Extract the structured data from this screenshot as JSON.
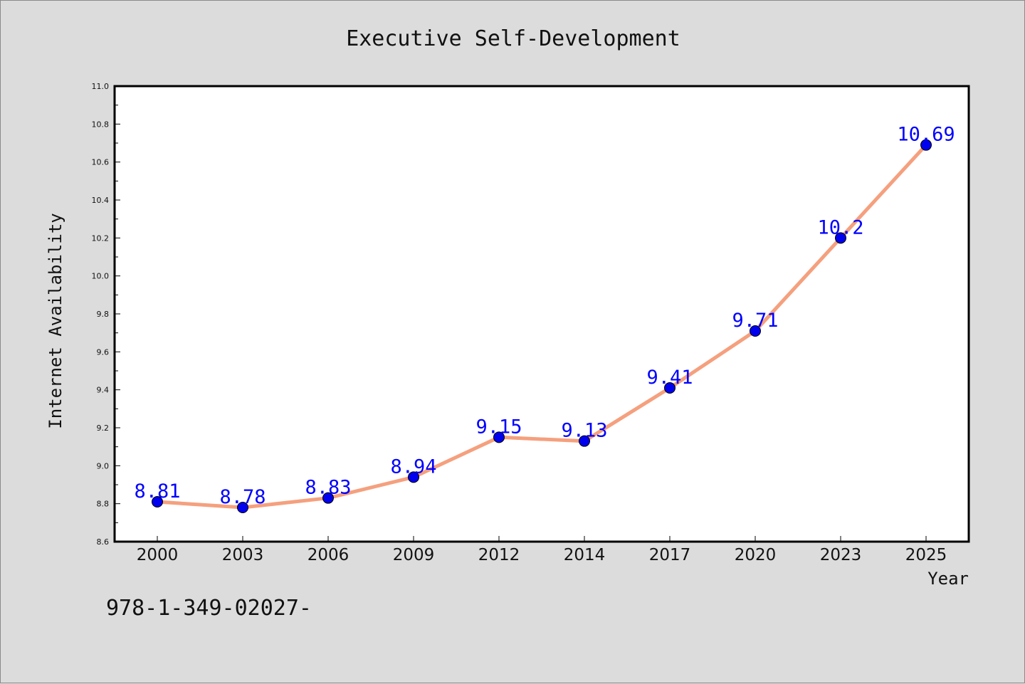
{
  "chart_data": {
    "type": "line",
    "title": "Executive Self-Development",
    "xlabel": "Year",
    "ylabel": "Internet Availability",
    "categories": [
      "2000",
      "2003",
      "2006",
      "2009",
      "2012",
      "2014",
      "2017",
      "2020",
      "2023",
      "2025"
    ],
    "series": [
      {
        "values": [
          8.81,
          8.78,
          8.83,
          8.94,
          9.15,
          9.13,
          9.41,
          9.71,
          10.2,
          10.69
        ],
        "labels": [
          "8.81",
          "8.78",
          "8.83",
          "8.94",
          "9.15",
          "9.13",
          "9.41",
          "9.71",
          "10.2",
          "10.69"
        ],
        "line_color": "#f5a07e",
        "marker_color": "#0000ee",
        "label_color": "#0000ff"
      }
    ],
    "ylim": [
      8.6,
      11.0
    ],
    "y_ticks": [
      "8.6",
      "8.8",
      "9.0",
      "9.2",
      "9.4",
      "9.6",
      "9.8",
      "10.0",
      "10.2",
      "10.4",
      "10.6",
      "10.8",
      "11.0"
    ],
    "grid": false,
    "legend": "none"
  },
  "annotation": "978-1-349-02027-"
}
